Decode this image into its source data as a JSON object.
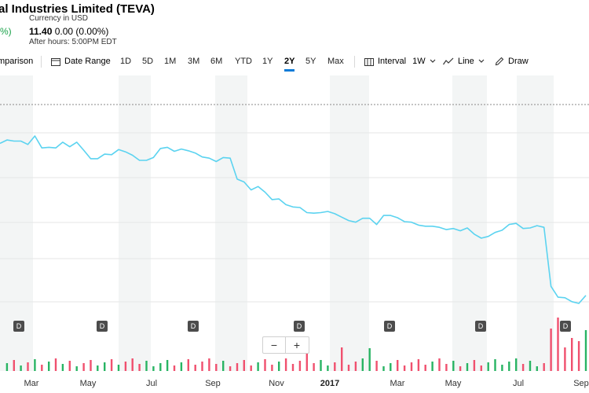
{
  "header": {
    "title": "al Industries Limited (TEVA)",
    "currency": "Currency in USD",
    "change_left": "%)",
    "after_hours_price": "11.40",
    "after_hours_change": "0.00 (0.00%)",
    "after_hours_time": "After hours: 5:00PM EDT"
  },
  "toolbar": {
    "comparison_label": "mparison",
    "date_range_label": "Date Range",
    "ranges": [
      "1D",
      "5D",
      "1M",
      "3M",
      "6M",
      "YTD",
      "1Y",
      "2Y",
      "5Y",
      "Max"
    ],
    "active_range": "2Y",
    "interval_label": "Interval",
    "interval_value": "1W",
    "chart_type_label": "Line",
    "draw_label": "Draw"
  },
  "zoom": {
    "out": "−",
    "in": "+"
  },
  "dividend_marker": "D",
  "colors": {
    "line": "#5bd3f0",
    "up": "#28b463",
    "down": "#f0506e",
    "active_underline": "#0c7bd8",
    "band": "#f3f5f5",
    "green_text": "#1aa24a"
  },
  "chart_data": {
    "type": "line",
    "title": "",
    "xlabel": "",
    "ylabel": "",
    "x_tick_labels": [
      "Mar",
      "May",
      "Jul",
      "Sep",
      "Nov",
      "2017",
      "Mar",
      "May",
      "Jul",
      "Sep"
    ],
    "series": [
      {
        "values": [
          52.2,
          52.8,
          52.6,
          52.6,
          52.0,
          53.5,
          51.4,
          51.5,
          51.4,
          52.4,
          51.6,
          52.4,
          51.0,
          49.5,
          49.5,
          50.3,
          50.2,
          51.1,
          50.7,
          50.1,
          49.2,
          49.2,
          49.7,
          51.3,
          51.5,
          50.8,
          51.2,
          50.9,
          50.5,
          49.8,
          49.6,
          49.0,
          49.7,
          49.6,
          45.9,
          45.4,
          44.0,
          44.6,
          43.6,
          42.3,
          42.4,
          41.4,
          41.0,
          40.9,
          40.0,
          39.9,
          40.0,
          40.2,
          39.8,
          39.2,
          38.6,
          38.3,
          39.0,
          39.0,
          37.9,
          39.5,
          39.5,
          39.1,
          38.4,
          38.3,
          37.8,
          37.6,
          37.6,
          37.4,
          37.0,
          37.2,
          36.8,
          37.3,
          36.2,
          35.5,
          35.8,
          36.5,
          36.9,
          37.9,
          38.1,
          37.2,
          37.3,
          37.7,
          37.4,
          27.0,
          25.1,
          25.0,
          24.3,
          24.0,
          25.4
        ]
      }
    ]
  }
}
